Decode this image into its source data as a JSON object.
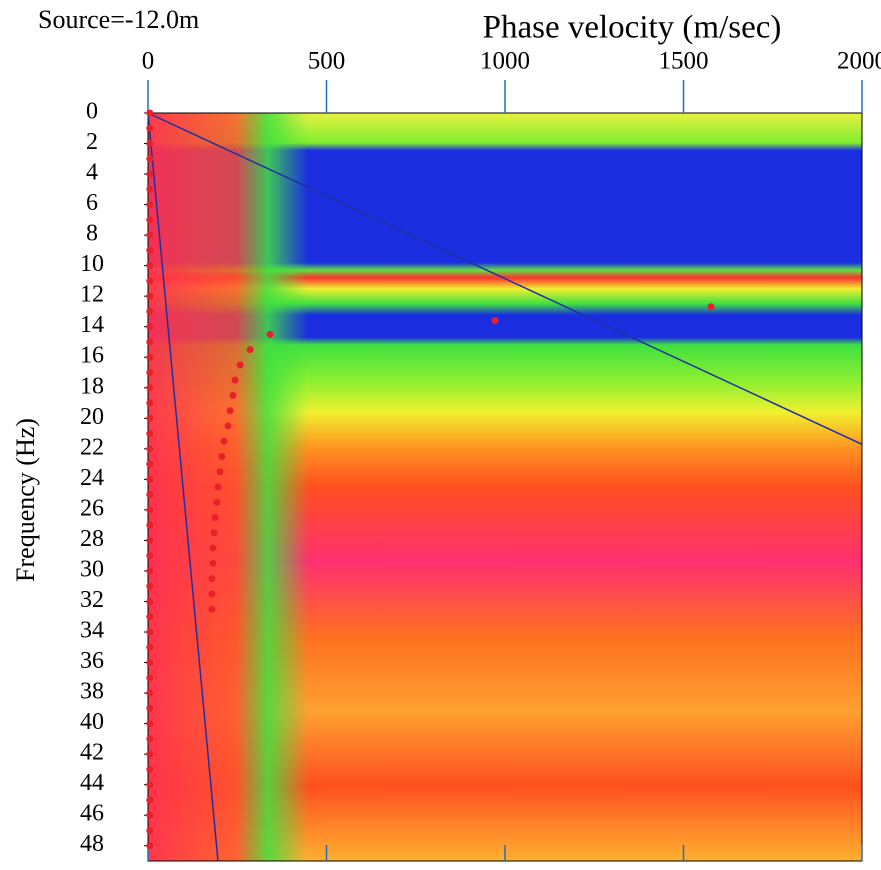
{
  "chart_data": {
    "type": "scatter",
    "title": "Phase velocity (m/sec)",
    "subtitle": "Source=-12.0m",
    "y_label": "Frequency (Hz)",
    "xlim": [
      0,
      2000
    ],
    "xticks": [
      0,
      500,
      1000,
      1500,
      2000
    ],
    "ylim": [
      0,
      49
    ],
    "yticks": [
      0,
      2,
      4,
      6,
      8,
      10,
      12,
      14,
      16,
      18,
      20,
      22,
      24,
      26,
      28,
      30,
      32,
      34,
      36,
      38,
      40,
      42,
      44,
      46,
      48
    ],
    "y_inverted": true,
    "x_axis_position": "top",
    "series": [
      {
        "color": "#e8202a",
        "x": [
          5,
          5,
          5,
          5,
          5,
          5,
          5,
          5,
          5,
          5,
          5,
          5,
          5,
          5,
          5,
          5,
          5,
          5,
          5,
          5,
          5,
          5,
          5,
          5,
          5,
          5,
          5,
          5,
          5,
          5,
          5,
          5,
          5,
          5,
          5,
          5,
          5,
          5,
          5,
          5,
          5,
          5,
          5,
          5,
          5,
          5,
          5,
          5,
          5
        ],
        "values": [
          0,
          1,
          2,
          3,
          4,
          5,
          6,
          7,
          8,
          9,
          10,
          11,
          12,
          13,
          14,
          15,
          16,
          17,
          18,
          19,
          20,
          21,
          22,
          23,
          24,
          25,
          26,
          27,
          28,
          29,
          30,
          31,
          32,
          33,
          34,
          35,
          36,
          37,
          38,
          39,
          40,
          41,
          42,
          43,
          44,
          45,
          46,
          47,
          48
        ]
      },
      {
        "color": "#e8202a",
        "x": [
          972,
          1577,
          342,
          286,
          258,
          244,
          238,
          230,
          224,
          213,
          207,
          202,
          196,
          193,
          188,
          185,
          182,
          182,
          179,
          179,
          179
        ],
        "values": [
          13.6,
          12.7,
          14.5,
          15.5,
          16.5,
          17.5,
          18.5,
          19.5,
          20.5,
          21.5,
          22.5,
          23.5,
          24.5,
          25.5,
          26.5,
          27.5,
          28.5,
          29.5,
          30.5,
          31.5,
          32.5
        ]
      }
    ],
    "reference_lines": [
      {
        "color": "#2030a0",
        "x": [
          0,
          2000
        ],
        "values": [
          0,
          21.7
        ]
      },
      {
        "color": "#2030a0",
        "x": [
          0,
          196
        ],
        "values": [
          0,
          49
        ]
      }
    ]
  }
}
